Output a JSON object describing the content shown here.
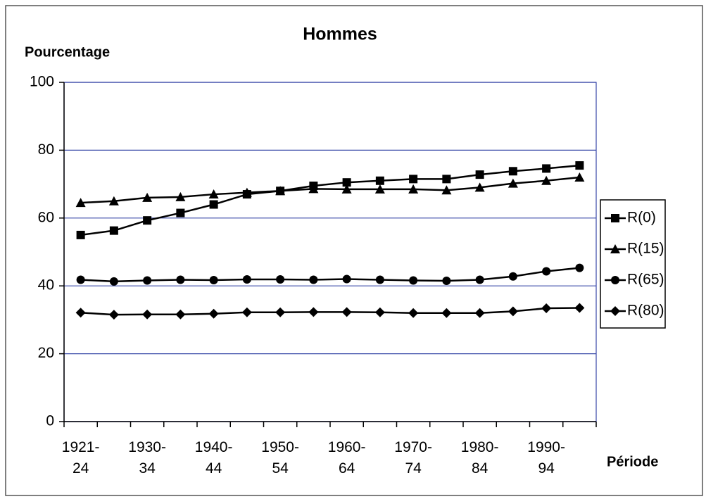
{
  "chart_data": {
    "type": "line",
    "title": "Hommes",
    "y_label": "Pourcentage",
    "x_label": "Période",
    "categories": [
      "1921-\n24",
      null,
      "1930-\n34",
      null,
      "1940-\n44",
      null,
      "1950-\n54",
      null,
      "1960-\n64",
      null,
      "1970-\n74",
      null,
      "1980-\n84",
      null,
      "1990-\n94",
      null
    ],
    "series": [
      {
        "name": "R(0)",
        "color": "#000000",
        "marker": "square",
        "values": [
          55,
          56.3,
          59.3,
          61.5,
          64,
          67,
          68,
          69.5,
          70.5,
          71,
          71.5,
          71.5,
          72.8,
          73.8,
          74.6,
          75.5
        ]
      },
      {
        "name": "R(15)",
        "color": "#000000",
        "marker": "triangle",
        "values": [
          64.5,
          65,
          66,
          66.2,
          67,
          67.5,
          68,
          68.6,
          68.5,
          68.5,
          68.5,
          68.2,
          69,
          70.2,
          71,
          72
        ]
      },
      {
        "name": "R(65)",
        "color": "#000000",
        "marker": "circle",
        "values": [
          41.8,
          41.3,
          41.6,
          41.8,
          41.7,
          41.9,
          41.9,
          41.8,
          42,
          41.8,
          41.6,
          41.5,
          41.8,
          42.8,
          44.3,
          45.3
        ]
      },
      {
        "name": "R(80)",
        "color": "#000000",
        "marker": "diamond",
        "values": [
          32.1,
          31.5,
          31.6,
          31.6,
          31.8,
          32.2,
          32.2,
          32.3,
          32.3,
          32.2,
          32,
          32,
          32,
          32.5,
          33.4,
          33.5
        ]
      }
    ],
    "ylim": [
      0,
      100
    ],
    "yticks": [
      0,
      20,
      40,
      60,
      80,
      100
    ],
    "grid": true,
    "grid_color": "#3848a8",
    "legend": "right"
  }
}
